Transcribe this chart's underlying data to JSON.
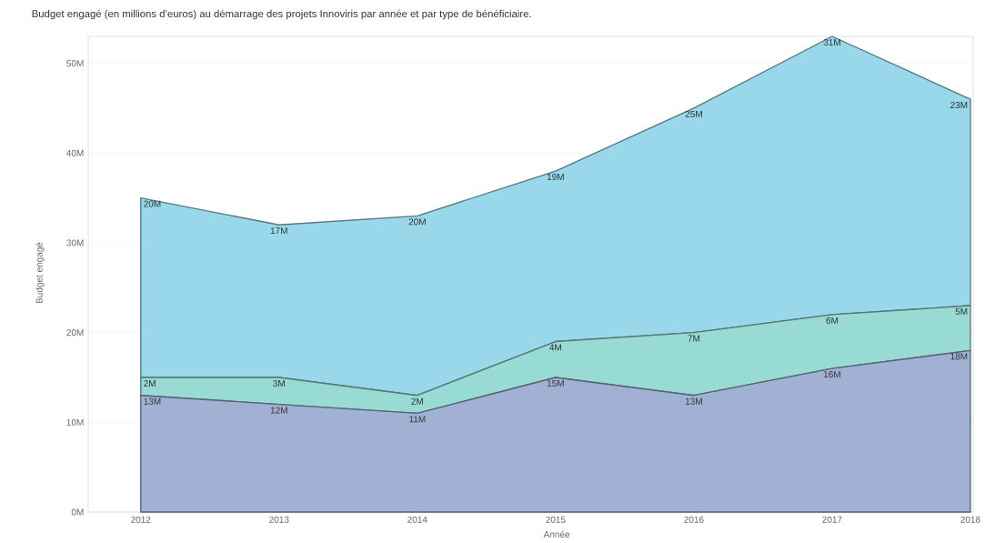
{
  "chart_data": {
    "type": "area",
    "title": "Budget engagé (en millions d’euros) au démarrage des projets Innoviris par année et par type de bénéficiaire.",
    "xlabel": "Année",
    "ylabel": "Budget engagé",
    "categories": [
      "2012",
      "2013",
      "2014",
      "2015",
      "2016",
      "2017",
      "2018"
    ],
    "stacked": true,
    "series": [
      {
        "color": "#a0b1d4",
        "values": [
          13,
          12,
          11,
          15,
          13,
          16,
          18
        ],
        "value_labels": [
          "13M",
          "12M",
          "11M",
          "15M",
          "13M",
          "16M",
          "18M"
        ]
      },
      {
        "color": "#98dad4",
        "values": [
          2,
          3,
          2,
          4,
          7,
          6,
          5
        ],
        "value_labels": [
          "2M",
          "3M",
          "2M",
          "4M",
          "7M",
          "6M",
          "5M"
        ]
      },
      {
        "color": "#98d8ea",
        "values": [
          20,
          17,
          20,
          19,
          25,
          31,
          23
        ],
        "value_labels": [
          "20M",
          "17M",
          "20M",
          "19M",
          "25M",
          "31M",
          "23M"
        ]
      }
    ],
    "ylim": [
      0,
      53
    ],
    "yticks": [
      {
        "value": 0,
        "label": "0M"
      },
      {
        "value": 10,
        "label": "10M"
      },
      {
        "value": 20,
        "label": "20M"
      },
      {
        "value": 30,
        "label": "30M"
      },
      {
        "value": 40,
        "label": "40M"
      },
      {
        "value": 50,
        "label": "50M"
      }
    ],
    "grid": "y",
    "legend": false
  }
}
